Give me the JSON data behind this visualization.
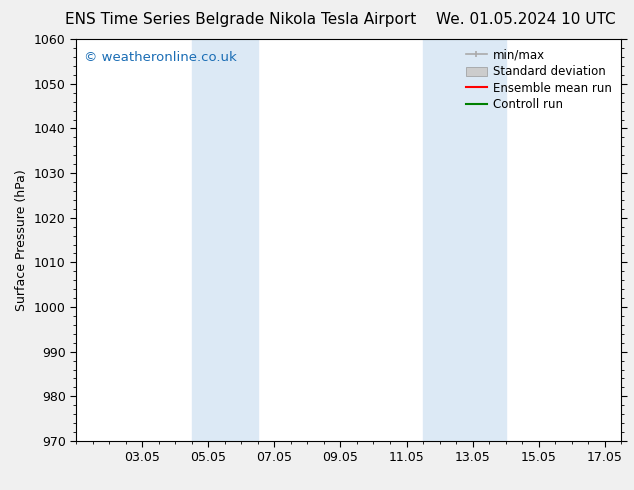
{
  "title_left": "ENS Time Series Belgrade Nikola Tesla Airport",
  "title_right": "We. 01.05.2024 10 UTC",
  "ylabel": "Surface Pressure (hPa)",
  "ylim": [
    970,
    1060
  ],
  "yticks": [
    970,
    980,
    990,
    1000,
    1010,
    1020,
    1030,
    1040,
    1050,
    1060
  ],
  "xtick_labels": [
    "03.05",
    "05.05",
    "07.05",
    "09.05",
    "11.05",
    "13.05",
    "15.05",
    "17.05"
  ],
  "xtick_positions": [
    2,
    4,
    6,
    8,
    10,
    12,
    14,
    16
  ],
  "xlim": [
    0,
    16.5
  ],
  "background_color": "#f0f0f0",
  "plot_bg_color": "#ffffff",
  "watermark": "© weatheronline.co.uk",
  "watermark_color": "#1a6db5",
  "shaded_regions": [
    {
      "x_start": 3.5,
      "x_end": 5.5,
      "color": "#dce9f5"
    },
    {
      "x_start": 10.5,
      "x_end": 13.0,
      "color": "#dce9f5"
    }
  ],
  "legend_items": [
    {
      "label": "min/max",
      "color": "#aaaaaa",
      "style": "errorbar"
    },
    {
      "label": "Standard deviation",
      "color": "#cccccc",
      "style": "bar"
    },
    {
      "label": "Ensemble mean run",
      "color": "#ff0000",
      "style": "line"
    },
    {
      "label": "Controll run",
      "color": "#008000",
      "style": "line"
    }
  ],
  "title_fontsize": 11,
  "tick_fontsize": 9,
  "label_fontsize": 9,
  "legend_fontsize": 8.5,
  "watermark_fontsize": 9.5
}
